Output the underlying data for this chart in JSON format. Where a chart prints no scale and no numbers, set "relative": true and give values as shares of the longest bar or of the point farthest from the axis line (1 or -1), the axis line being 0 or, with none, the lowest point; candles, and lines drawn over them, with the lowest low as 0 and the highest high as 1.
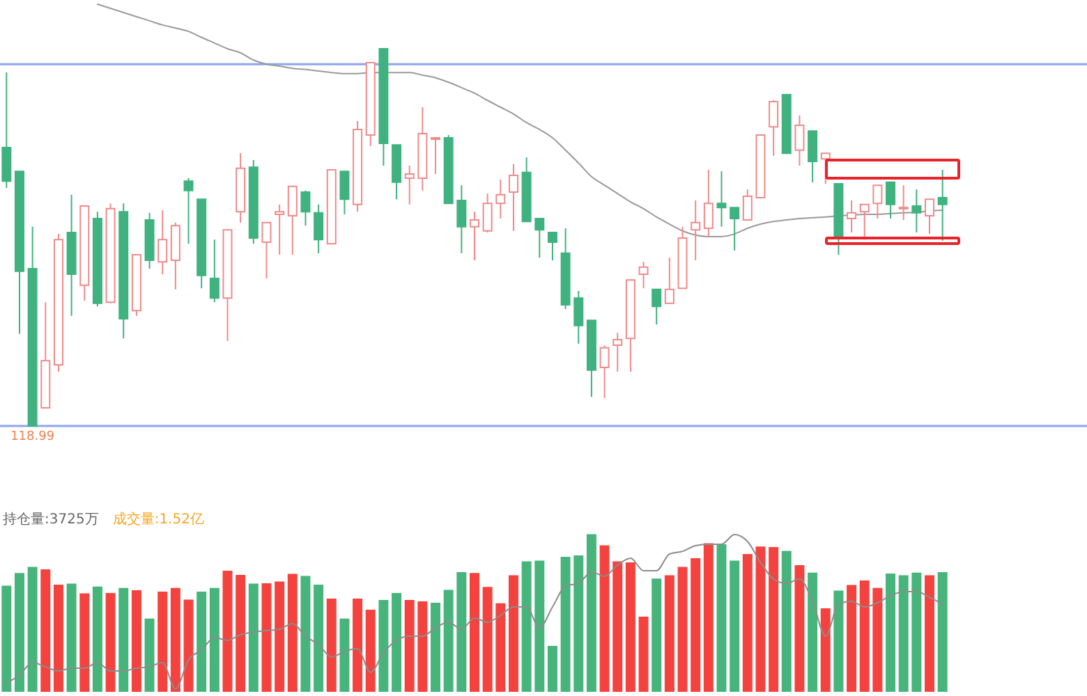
{
  "chart_data": [
    {
      "type": "candlestick",
      "relative": true,
      "categories": [
        null,
        null,
        null,
        null,
        null,
        null,
        null,
        null,
        null,
        null,
        null,
        null,
        null,
        null,
        null,
        null,
        null,
        null,
        null,
        null,
        null,
        null,
        null,
        null,
        null,
        null,
        null,
        null,
        null,
        null,
        null,
        null,
        null,
        null,
        null,
        null,
        null,
        null,
        null,
        null,
        null,
        null,
        null,
        null,
        null,
        null,
        null,
        null,
        null,
        null,
        null,
        null,
        null,
        null,
        null,
        null,
        null,
        null,
        null,
        null,
        null,
        null,
        null,
        null,
        null,
        null,
        null,
        null,
        null,
        null,
        null,
        null,
        null
      ],
      "ohlc": [
        [
          0.738,
          0.937,
          0.631,
          0.649
        ],
        [
          0.675,
          0.675,
          0.244,
          0.41
        ],
        [
          0.417,
          0.528,
          0,
          0
        ],
        [
          0.048,
          0.328,
          0.048,
          0.173
        ],
        [
          0.162,
          0.509,
          0.144,
          0.494
        ],
        [
          0.513,
          0.613,
          0.292,
          0.402
        ],
        [
          0.373,
          0.583,
          0.332,
          0.583
        ],
        [
          0.55,
          0.568,
          0.317,
          0.325
        ],
        [
          0.328,
          0.59,
          0.325,
          0.576
        ],
        [
          0.568,
          0.59,
          0.232,
          0.284
        ],
        [
          0.306,
          0.454,
          0.292,
          0.454
        ],
        [
          0.546,
          0.565,
          0.417,
          0.439
        ],
        [
          0.435,
          0.572,
          0.402,
          0.494
        ],
        [
          0.439,
          0.539,
          0.362,
          0.531
        ],
        [
          0.649,
          0.657,
          0.483,
          0.624
        ],
        [
          0.601,
          0.601,
          0.365,
          0.399
        ],
        [
          0.391,
          0.494,
          0.328,
          0.339
        ],
        [
          0.339,
          0.52,
          0.225,
          0.52
        ],
        [
          0.568,
          0.723,
          0.539,
          0.683
        ],
        [
          0.686,
          0.705,
          0.483,
          0.498
        ],
        [
          0.487,
          0.539,
          0.391,
          0.539
        ],
        [
          0.561,
          0.587,
          0.454,
          0.568
        ],
        [
          0.557,
          0.635,
          0.454,
          0.635
        ],
        [
          0.62,
          0.624,
          0.531,
          0.568
        ],
        [
          0.565,
          0.587,
          0.458,
          0.494
        ],
        [
          0.483,
          0.679,
          0.483,
          0.679
        ],
        [
          0.675,
          0.675,
          0.561,
          0.601
        ],
        [
          0.587,
          0.808,
          0.568,
          0.786
        ],
        [
          0.771,
          0.963,
          0.742,
          0.963
        ],
        [
          1,
          1,
          0.69,
          0.749
        ],
        [
          0.745,
          0.745,
          0.601,
          0.646
        ],
        [
          0.657,
          0.69,
          0.587,
          0.668
        ],
        [
          0.657,
          0.845,
          0.624,
          0.775
        ],
        [
          0.76,
          0.764,
          0.668,
          0.764
        ],
        [
          0.764,
          0.771,
          0.59,
          0.59
        ],
        [
          0.598,
          0.638,
          0.458,
          0.528
        ],
        [
          0.528,
          0.568,
          0.439,
          0.546
        ],
        [
          0.517,
          0.616,
          0.513,
          0.59
        ],
        [
          0.59,
          0.653,
          0.55,
          0.613
        ],
        [
          0.62,
          0.694,
          0.517,
          0.664
        ],
        [
          0.672,
          0.712,
          0.542,
          0.542
        ],
        [
          0.55,
          0.55,
          0.446,
          0.52
        ],
        [
          0.513,
          0.513,
          0.439,
          0.487
        ],
        [
          0.458,
          0.524,
          0.31,
          0.321
        ],
        [
          0.339,
          0.358,
          0.218,
          0.266
        ],
        [
          0.28,
          0.28,
          0.077,
          0.148
        ],
        [
          0.155,
          0.214,
          0.074,
          0.207
        ],
        [
          0.214,
          0.247,
          0.144,
          0.229
        ],
        [
          0.232,
          0.387,
          0.144,
          0.387
        ],
        [
          0.402,
          0.435,
          0.365,
          0.421
        ],
        [
          0.362,
          0.362,
          0.269,
          0.317
        ],
        [
          0.325,
          0.446,
          0.325,
          0.362
        ],
        [
          0.365,
          0.528,
          0.365,
          0.498
        ],
        [
          0.52,
          0.598,
          0.439,
          0.539
        ],
        [
          0.524,
          0.679,
          0.502,
          0.59
        ],
        [
          0.59,
          0.675,
          0.528,
          0.579
        ],
        [
          0.579,
          0.579,
          0.465,
          0.55
        ],
        [
          0.546,
          0.627,
          0.546,
          0.609
        ],
        [
          0.605,
          0.771,
          0.605,
          0.771
        ],
        [
          0.793,
          0.863,
          0.716,
          0.86
        ],
        [
          0.878,
          0.878,
          0.723,
          0.723
        ],
        [
          0.731,
          0.823,
          0.69,
          0.797
        ],
        [
          0.782,
          0.782,
          0.646,
          0.701
        ],
        [
          0.708,
          0.723,
          0.642,
          0.723
        ],
        [
          0.642,
          0.642,
          0.454,
          0.498
        ],
        [
          0.55,
          0.598,
          0.513,
          0.565
        ],
        [
          0.568,
          0.587,
          0.494,
          0.587
        ],
        [
          0.59,
          0.638,
          0.55,
          0.638
        ],
        [
          0.646,
          0.646,
          0.55,
          0.587
        ],
        [
          0.576,
          0.638,
          0.546,
          0.579
        ],
        [
          0.583,
          0.627,
          0.513,
          0.565
        ],
        [
          0.557,
          0.601,
          0.509,
          0.601
        ],
        [
          0.605,
          0.679,
          0.491,
          0.587
        ]
      ],
      "colors": [
        "#3fb27f",
        "#3fb27f",
        "#3fb27f",
        "#f08a8a",
        "#f08a8a",
        "#3fb27f",
        "#f08a8a",
        "#3fb27f",
        "#f08a8a",
        "#3fb27f",
        "#f08a8a",
        "#3fb27f",
        "#f08a8a",
        "#f08a8a",
        "#3fb27f",
        "#3fb27f",
        "#3fb27f",
        "#f08a8a",
        "#f08a8a",
        "#3fb27f",
        "#f08a8a",
        "#f08a8a",
        "#f08a8a",
        "#3fb27f",
        "#3fb27f",
        "#f08a8a",
        "#3fb27f",
        "#f08a8a",
        "#f08a8a",
        "#3fb27f",
        "#3fb27f",
        "#f08a8a",
        "#f08a8a",
        "#f08a8a",
        "#3fb27f",
        "#3fb27f",
        "#f08a8a",
        "#f08a8a",
        "#f08a8a",
        "#f08a8a",
        "#3fb27f",
        "#3fb27f",
        "#3fb27f",
        "#3fb27f",
        "#3fb27f",
        "#3fb27f",
        "#f08a8a",
        "#f08a8a",
        "#f08a8a",
        "#f08a8a",
        "#3fb27f",
        "#f08a8a",
        "#f08a8a",
        "#f08a8a",
        "#f08a8a",
        "#3fb27f",
        "#3fb27f",
        "#f08a8a",
        "#f08a8a",
        "#f08a8a",
        "#3fb27f",
        "#f08a8a",
        "#3fb27f",
        "#f08a8a",
        "#3fb27f",
        "#f08a8a",
        "#f08a8a",
        "#f08a8a",
        "#3fb27f",
        "#f08a8a",
        "#3fb27f",
        "#f08a8a",
        "#3fb27f"
      ],
      "series": [
        {
          "type": "line",
          "color": "#9a9a9a",
          "values": [
            null,
            null,
            null,
            null,
            null,
            null,
            null,
            1.118,
            1.107,
            1.096,
            1.085,
            1.074,
            1.063,
            1.055,
            1.046,
            1.03,
            1.015,
            1.0,
            0.989,
            0.97,
            0.959,
            0.954,
            0.948,
            0.945,
            0.941,
            0.937,
            0.934,
            0.934,
            0.937,
            0.937,
            0.937,
            0.937,
            0.93,
            0.923,
            0.911,
            0.897,
            0.882,
            0.863,
            0.845,
            0.827,
            0.804,
            0.786,
            0.764,
            0.731,
            0.697,
            0.661,
            0.638,
            0.616,
            0.594,
            0.576,
            0.554,
            0.535,
            0.517,
            0.506,
            0.502,
            0.502,
            0.509,
            0.524,
            0.535,
            0.542,
            0.546,
            0.55,
            0.552,
            0.554,
            0.557,
            0.559,
            0.561,
            0.561,
            0.563,
            0.565,
            0.566,
            0.57,
            0.572
          ]
        }
      ],
      "ref_lines": [
        {
          "axis": "y",
          "value": 0.959,
          "color": "#8ea4f2"
        },
        {
          "axis": "y",
          "value": 0,
          "color": "#8ea4f2"
        }
      ],
      "annotations": [
        {
          "text": "118.99",
          "y": 0
        }
      ]
    },
    {
      "type": "bar",
      "relative": true,
      "categories": [
        null,
        null,
        null,
        null,
        null,
        null,
        null,
        null,
        null,
        null,
        null,
        null,
        null,
        null,
        null,
        null,
        null,
        null,
        null,
        null,
        null,
        null,
        null,
        null,
        null,
        null,
        null,
        null,
        null,
        null,
        null,
        null,
        null,
        null,
        null,
        null,
        null,
        null,
        null,
        null,
        null,
        null,
        null,
        null,
        null,
        null,
        null,
        null,
        null,
        null,
        null,
        null,
        null,
        null,
        null,
        null,
        null,
        null,
        null,
        null,
        null,
        null,
        null,
        null,
        null,
        null,
        null,
        null,
        null,
        null,
        null,
        null,
        null
      ],
      "series": [
        {
          "type": "bar",
          "values": [
            0.673,
            0.753,
            0.792,
            0.777,
            0.68,
            0.686,
            0.624,
            0.668,
            0.627,
            0.659,
            0.644,
            0.465,
            0.635,
            0.659,
            0.585,
            0.635,
            0.659,
            0.768,
            0.741,
            0.686,
            0.688,
            0.7,
            0.748,
            0.735,
            0.68,
            0.591,
            0.465,
            0.591,
            0.521,
            0.583,
            0.627,
            0.583,
            0.574,
            0.565,
            0.647,
            0.759,
            0.753,
            0.665,
            0.562,
            0.739,
            0.827,
            0.832,
            0.291,
            0.856,
            0.865,
            1,
            0.929,
            0.827,
            0.821,
            0.477,
            0.718,
            0.739,
            0.792,
            0.847,
            0.942,
            0.936,
            0.832,
            0.874,
            0.921,
            0.918,
            0.894,
            0.803,
            0.756,
            0.53,
            0.642,
            0.677,
            0.706,
            0.659,
            0.75,
            0.739,
            0.756,
            0.739,
            0.759
          ],
          "colors": [
            "#47b47c",
            "#47b47c",
            "#47b47c",
            "#f4433e",
            "#f4433e",
            "#47b47c",
            "#f4433e",
            "#47b47c",
            "#f4433e",
            "#47b47c",
            "#f4433e",
            "#47b47c",
            "#f4433e",
            "#f4433e",
            "#f4433e",
            "#47b47c",
            "#47b47c",
            "#f4433e",
            "#f4433e",
            "#47b47c",
            "#f4433e",
            "#f4433e",
            "#f4433e",
            "#47b47c",
            "#47b47c",
            "#f4433e",
            "#47b47c",
            "#f4433e",
            "#f4433e",
            "#47b47c",
            "#47b47c",
            "#f4433e",
            "#f4433e",
            "#47b47c",
            "#47b47c",
            "#47b47c",
            "#f4433e",
            "#f4433e",
            "#f4433e",
            "#f4433e",
            "#47b47c",
            "#47b47c",
            "#47b47c",
            "#47b47c",
            "#47b47c",
            "#47b47c",
            "#f4433e",
            "#f4433e",
            "#f4433e",
            "#f4433e",
            "#47b47c",
            "#f4433e",
            "#f4433e",
            "#f4433e",
            "#f4433e",
            "#47b47c",
            "#47b47c",
            "#f4433e",
            "#f4433e",
            "#f4433e",
            "#47b47c",
            "#f4433e",
            "#47b47c",
            "#f4433e",
            "#47b47c",
            "#f4433e",
            "#f4433e",
            "#f4433e",
            "#47b47c",
            "#47b47c",
            "#47b47c",
            "#f4433e",
            "#47b47c"
          ]
        },
        {
          "type": "line",
          "color": "#8c8c8c",
          "values": [
            0.056,
            0.106,
            0.185,
            0.159,
            0.132,
            0.15,
            0.15,
            0.185,
            0.132,
            0.132,
            0.15,
            0.159,
            0.185,
            0.018,
            0.203,
            0.265,
            0.344,
            0.327,
            0.362,
            0.38,
            0.388,
            0.397,
            0.432,
            0.353,
            0.3,
            0.221,
            0.256,
            0.274,
            0.124,
            0.247,
            0.327,
            0.353,
            0.353,
            0.406,
            0.441,
            0.397,
            0.468,
            0.441,
            0.485,
            0.538,
            0.538,
            0.406,
            0.538,
            0.671,
            0.688,
            0.759,
            0.733,
            0.803,
            0.847,
            0.768,
            0.768,
            0.874,
            0.891,
            0.927,
            0.936,
            0.936,
            0.997,
            0.953,
            0.821,
            0.715,
            0.688,
            0.715,
            0.574,
            0.353,
            0.556,
            0.574,
            0.538,
            0.565,
            0.609,
            0.635,
            0.635,
            0.6,
            0.556
          ]
        }
      ],
      "annotations": [
        "持仓量:3725万",
        "成交量:1.52亿"
      ]
    }
  ]
}
